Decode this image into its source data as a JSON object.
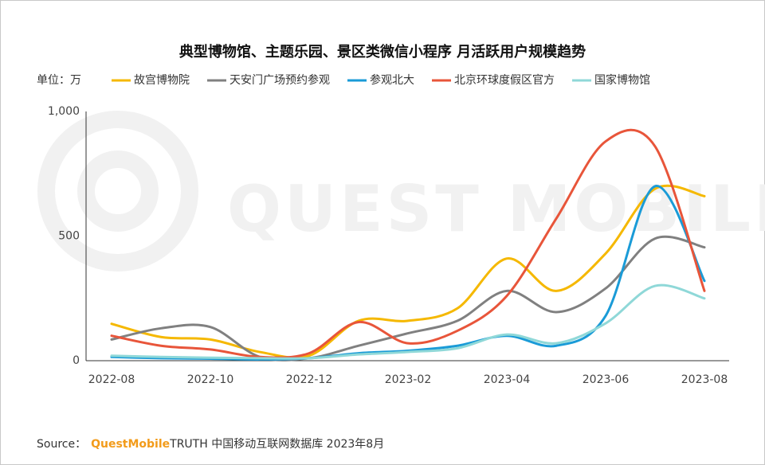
{
  "chart_data": {
    "type": "line",
    "title": "典型博物馆、主题乐园、景区类微信小程序 月活跃用户规模趋势",
    "unit_label": "单位：万",
    "watermark": "QUEST MOBILE",
    "source": {
      "prefix": "Source：",
      "brand": "QuestMobile",
      "text": "TRUTH 中国移动互联网数据库 2023年8月"
    },
    "categories": [
      "2022-08",
      null,
      "2022-10",
      null,
      "2022-12",
      null,
      "2023-02",
      null,
      "2023-04",
      null,
      "2023-06",
      null,
      "2023-08"
    ],
    "ylim": [
      0,
      1000
    ],
    "yticks": [
      0,
      500,
      {
        "value": 1000,
        "label": "1,000"
      }
    ],
    "series": [
      {
        "name": "故宫博物院",
        "color": "#f5b800",
        "values": [
          148,
          95,
          85,
          35,
          20,
          160,
          160,
          210,
          410,
          280,
          430,
          690,
          660
        ]
      },
      {
        "name": "天安门广场预约参观",
        "color": "#808080",
        "values": [
          85,
          130,
          135,
          15,
          10,
          60,
          110,
          160,
          280,
          195,
          290,
          490,
          455
        ]
      },
      {
        "name": "参观北大",
        "color": "#1a9bd7",
        "values": [
          15,
          10,
          8,
          5,
          10,
          30,
          40,
          60,
          100,
          60,
          180,
          700,
          320
        ]
      },
      {
        "name": "北京环球度假区官方",
        "color": "#e8553a",
        "values": [
          100,
          60,
          45,
          15,
          30,
          155,
          70,
          120,
          260,
          570,
          880,
          860,
          280
        ]
      },
      {
        "name": "国家博物馆",
        "color": "#8fd8d8",
        "values": [
          20,
          15,
          12,
          10,
          10,
          25,
          35,
          50,
          105,
          70,
          150,
          300,
          250
        ]
      }
    ]
  }
}
